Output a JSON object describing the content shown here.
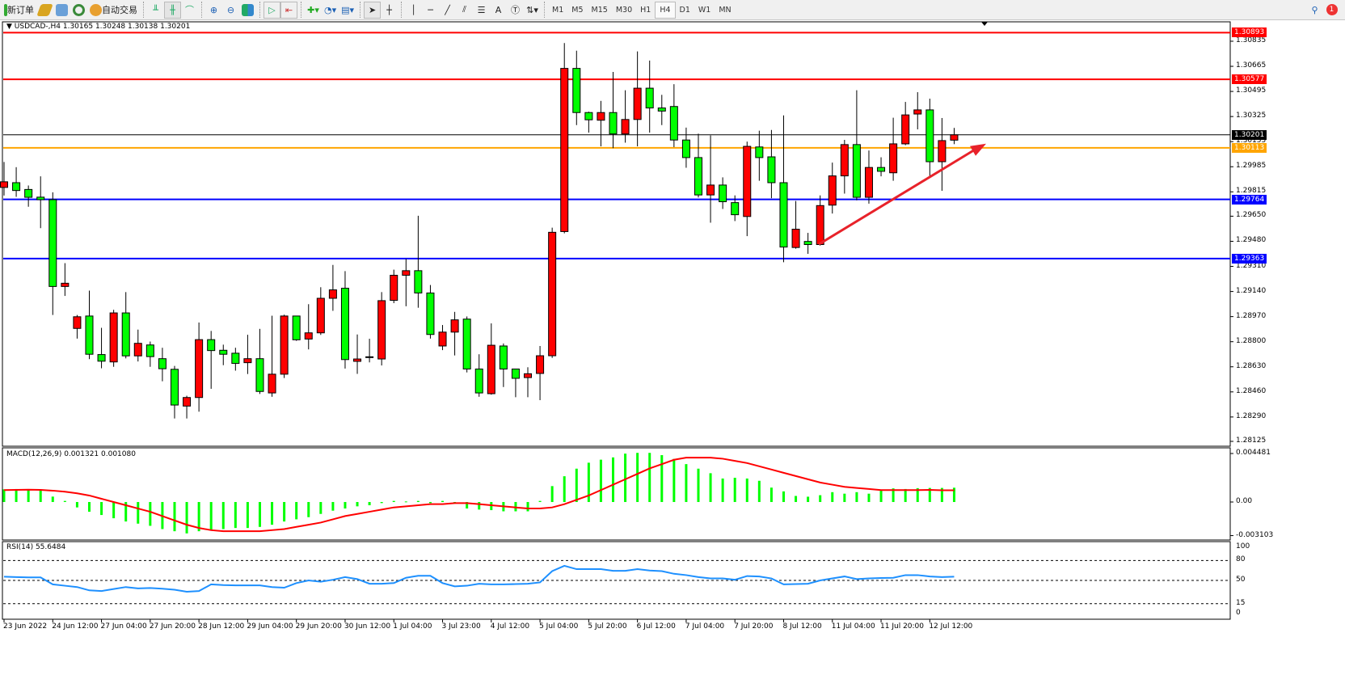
{
  "toolbar": {
    "new_order": "新订单",
    "auto_trading": "自动交易",
    "timeframes": [
      "M1",
      "M5",
      "M15",
      "M30",
      "H1",
      "H4",
      "D1",
      "W1",
      "MN"
    ],
    "active_timeframe": "H4",
    "notification_count": "1",
    "icons": [
      "new-order-icon",
      "gold-icon",
      "market-watch-icon",
      "signals-icon",
      "auto-trading-icon",
      "bar-chart-icon",
      "candle-chart-icon",
      "line-chart-icon",
      "zoom-in-icon",
      "zoom-out-icon",
      "tile-windows-icon",
      "auto-scroll-icon",
      "chart-shift-icon",
      "add-indicator-icon",
      "periods-icon",
      "templates-icon",
      "cursor-icon",
      "crosshair-icon",
      "vertical-line-icon",
      "horizontal-line-icon",
      "trendline-icon",
      "fibonacci-icon",
      "fibo-levels-icon",
      "text-icon",
      "text-label-icon",
      "arrows-icon",
      "search-icon",
      "notification-icon"
    ]
  },
  "chart": {
    "header": "USDCAD-,H4  1.30165 1.30248 1.30138 1.30201",
    "colors": {
      "bull": "#ff0000",
      "bear": "#00ff00",
      "bid": "#000000",
      "resistance": "#ff0000",
      "support": "#0000ff",
      "orange": "#ffa500",
      "trend_arrow": "#e8222a",
      "macd_hist": "#00ff00",
      "signal": "#ff0000",
      "rsi": "#1e90ff"
    }
  },
  "chart_data": [
    {
      "type": "candlestick",
      "symbol": "USDCAD-",
      "timeframe": "H4",
      "y_ticks": [
        "1.30835",
        "1.30665",
        "1.30495",
        "1.30325",
        "1.30155",
        "1.29985",
        "1.29815",
        "1.29650",
        "1.29480",
        "1.29310",
        "1.29140",
        "1.28970",
        "1.28800",
        "1.28630",
        "1.28460",
        "1.28290",
        "1.28125"
      ],
      "ylim": [
        1.28125,
        1.3096
      ],
      "x_labels": [
        "23 Jun 2022",
        "24 Jun 12:00",
        "27 Jun 04:00",
        "27 Jun 20:00",
        "28 Jun 12:00",
        "29 Jun 04:00",
        "29 Jun 20:00",
        "30 Jun 12:00",
        "1 Jul 04:00",
        "3 Jul 23:00",
        "4 Jul 12:00",
        "5 Jul 04:00",
        "5 Jul 20:00",
        "6 Jul 12:00",
        "7 Jul 04:00",
        "7 Jul 20:00",
        "8 Jul 12:00",
        "11 Jul 04:00",
        "11 Jul 20:00",
        "12 Jul 12:00"
      ],
      "hlines": [
        {
          "price": "1.30893",
          "color": "#ff0000"
        },
        {
          "price": "1.30577",
          "color": "#ff0000"
        },
        {
          "price": "1.30201",
          "color": "#000000"
        },
        {
          "price": "1.30113",
          "color": "#ffa500"
        },
        {
          "price": "1.29764",
          "color": "#0000ff"
        },
        {
          "price": "1.29363",
          "color": "#0000ff"
        }
      ],
      "trend_arrow": {
        "from": [
          65,
          1.2946
        ],
        "to": [
          79,
          1.3013
        ]
      },
      "ohlc": [
        [
          1.29845,
          1.30017,
          1.2979,
          1.29883
        ],
        [
          1.29877,
          1.29982,
          1.29781,
          1.29824
        ],
        [
          1.29831,
          1.29858,
          1.29714,
          1.29778
        ],
        [
          1.29779,
          1.2992,
          1.29569,
          1.29762
        ],
        [
          1.29762,
          1.29812,
          1.28981,
          1.29174
        ],
        [
          1.29174,
          1.29332,
          1.2911,
          1.29196
        ],
        [
          1.2889,
          1.28981,
          1.28821,
          1.28969
        ],
        [
          1.28974,
          1.29146,
          1.28682,
          1.28715
        ],
        [
          1.28713,
          1.28894,
          1.2862,
          1.28668
        ],
        [
          1.28663,
          1.29016,
          1.2863,
          1.28995
        ],
        [
          1.28995,
          1.29136,
          1.28687,
          1.28704
        ],
        [
          1.28704,
          1.28882,
          1.28666,
          1.28789
        ],
        [
          1.28778,
          1.28801,
          1.2863,
          1.28699
        ],
        [
          1.28685,
          1.28759,
          1.28532,
          1.28617
        ],
        [
          1.28613,
          1.28636,
          1.2828,
          1.28371
        ],
        [
          1.28364,
          1.28434,
          1.2828,
          1.28422
        ],
        [
          1.28422,
          1.2893,
          1.28326,
          1.28814
        ],
        [
          1.28814,
          1.28873,
          1.28481,
          1.2874
        ],
        [
          1.28742,
          1.2878,
          1.28641,
          1.28715
        ],
        [
          1.28722,
          1.28759,
          1.28604,
          1.28653
        ],
        [
          1.28658,
          1.28847,
          1.28581,
          1.28685
        ],
        [
          1.28685,
          1.28887,
          1.28446,
          1.28463
        ],
        [
          1.28453,
          1.28976,
          1.28427,
          1.2858
        ],
        [
          1.2858,
          1.28983,
          1.28554,
          1.28974
        ],
        [
          1.28974,
          1.28974,
          1.28806,
          1.28813
        ],
        [
          1.28818,
          1.29054,
          1.28748,
          1.2886
        ],
        [
          1.2886,
          1.29169,
          1.28846,
          1.29094
        ],
        [
          1.29094,
          1.2932,
          1.29009,
          1.29151
        ],
        [
          1.29162,
          1.29278,
          1.28618,
          1.28679
        ],
        [
          1.28667,
          1.28849,
          1.28582,
          1.28683
        ],
        [
          1.28698,
          1.2882,
          1.2866,
          1.28698
        ],
        [
          1.28683,
          1.29136,
          1.28639,
          1.29078
        ],
        [
          1.2908,
          1.29288,
          1.29061,
          1.2925
        ],
        [
          1.2925,
          1.29361,
          1.2904,
          1.29281
        ],
        [
          1.29281,
          1.29653,
          1.2903,
          1.2913
        ],
        [
          1.2913,
          1.29184,
          1.28821,
          1.28849
        ],
        [
          1.28771,
          1.28913,
          1.28743,
          1.28865
        ],
        [
          1.28865,
          1.29002,
          1.28707,
          1.28948
        ],
        [
          1.28953,
          1.28971,
          1.28592,
          1.28615
        ],
        [
          1.28615,
          1.28715,
          1.28427,
          1.28453
        ],
        [
          1.28448,
          1.28924,
          1.28441,
          1.28776
        ],
        [
          1.28771,
          1.28788,
          1.28493,
          1.28615
        ],
        [
          1.28615,
          1.28615,
          1.28424,
          1.28552
        ],
        [
          1.28557,
          1.28627,
          1.28424,
          1.28583
        ],
        [
          1.28585,
          1.28771,
          1.28404,
          1.28705
        ],
        [
          1.28705,
          1.29572,
          1.2869,
          1.29541
        ],
        [
          1.29546,
          1.30823,
          1.29534,
          1.30651
        ],
        [
          1.30651,
          1.30771,
          1.30267,
          1.30352
        ],
        [
          1.30352,
          1.30358,
          1.30216,
          1.30303
        ],
        [
          1.303,
          1.30431,
          1.30123,
          1.30352
        ],
        [
          1.30352,
          1.30627,
          1.30111,
          1.30207
        ],
        [
          1.30207,
          1.30503,
          1.30148,
          1.30305
        ],
        [
          1.30305,
          1.30766,
          1.30123,
          1.30517
        ],
        [
          1.30517,
          1.30704,
          1.30216,
          1.30383
        ],
        [
          1.30383,
          1.30472,
          1.30267,
          1.30362
        ],
        [
          1.30393,
          1.30544,
          1.30118,
          1.30166
        ],
        [
          1.30166,
          1.3025,
          1.29978,
          1.30047
        ],
        [
          1.30047,
          1.30209,
          1.29777,
          1.29794
        ],
        [
          1.29794,
          1.30197,
          1.29606,
          1.29861
        ],
        [
          1.29861,
          1.29913,
          1.29699,
          1.29748
        ],
        [
          1.29742,
          1.29791,
          1.29617,
          1.2966
        ],
        [
          1.29648,
          1.30155,
          1.29515,
          1.30123
        ],
        [
          1.30119,
          1.30229,
          1.2989,
          1.30047
        ],
        [
          1.30052,
          1.30234,
          1.29772,
          1.29877
        ],
        [
          1.29877,
          1.30333,
          1.29338,
          1.29441
        ],
        [
          1.29438,
          1.29753,
          1.2943,
          1.29562
        ],
        [
          1.29479,
          1.29537,
          1.29395,
          1.29458
        ],
        [
          1.29458,
          1.29791,
          1.29451,
          1.29722
        ],
        [
          1.29725,
          1.30013,
          1.29668,
          1.29923
        ],
        [
          1.29923,
          1.30167,
          1.29803,
          1.30135
        ],
        [
          1.30135,
          1.30503,
          1.29758,
          1.29778
        ],
        [
          1.29778,
          1.30095,
          1.29735,
          1.2998
        ],
        [
          1.2998,
          1.30049,
          1.2992,
          1.29954
        ],
        [
          1.29944,
          1.30317,
          1.2989,
          1.3014
        ],
        [
          1.3014,
          1.30424,
          1.30131,
          1.30336
        ],
        [
          1.30342,
          1.3049,
          1.30238,
          1.3037
        ],
        [
          1.3037,
          1.30446,
          1.29921,
          1.30019
        ],
        [
          1.30019,
          1.30315,
          1.29822,
          1.30162
        ],
        [
          1.30165,
          1.30248,
          1.30138,
          1.30201
        ]
      ]
    },
    {
      "type": "bar+line",
      "title": "MACD(12,26,9) 0.001321 0.001080",
      "y_ticks": [
        "0.004481",
        "0.00",
        "-0.003103"
      ],
      "ylim": [
        -0.003103,
        0.004481
      ],
      "histogram": [
        0.00117,
        0.0012,
        0.00117,
        0.0011,
        0.0005,
        0.0001,
        -0.0005,
        -0.0009,
        -0.0012,
        -0.0015,
        -0.0018,
        -0.002,
        -0.0022,
        -0.0025,
        -0.0027,
        -0.0029,
        -0.0027,
        -0.0026,
        -0.0025,
        -0.0024,
        -0.0024,
        -0.0023,
        -0.0021,
        -0.0018,
        -0.0016,
        -0.0014,
        -0.0011,
        -0.0008,
        -0.0006,
        -0.0004,
        -0.0003,
        -0.0001,
        0.0001,
        5e-05,
        0.0001,
        -0.0001,
        0.0001,
        -0.0001,
        -0.0006,
        -0.0007,
        -0.00075,
        -0.00086,
        -0.00086,
        -0.00086,
        0.0001,
        0.00147,
        0.00238,
        0.00308,
        0.00363,
        0.00391,
        0.00412,
        0.00447,
        0.00454,
        0.00454,
        0.00433,
        0.00398,
        0.0035,
        0.00308,
        0.00266,
        0.00217,
        0.00224,
        0.00217,
        0.00196,
        0.00133,
        0.00098,
        0.00056,
        0.00049,
        0.00063,
        0.00091,
        0.00077,
        0.00091,
        0.00077,
        0.00105,
        0.00126,
        0.0012,
        0.00128,
        0.0013,
        0.0013,
        0.001321
      ],
      "signal": [
        0.0011,
        0.00112,
        0.00114,
        0.00112,
        0.00105,
        0.00095,
        0.0008,
        0.0006,
        0.0003,
        0.0,
        -0.0003,
        -0.0006,
        -0.0009,
        -0.0013,
        -0.0017,
        -0.0021,
        -0.0024,
        -0.0026,
        -0.0027,
        -0.0027,
        -0.0027,
        -0.0027,
        -0.0026,
        -0.0025,
        -0.0023,
        -0.0021,
        -0.0019,
        -0.0016,
        -0.0013,
        -0.0011,
        -0.0009,
        -0.0007,
        -0.0005,
        -0.0004,
        -0.0003,
        -0.0002,
        -0.0002,
        -0.0001,
        -0.0001,
        -0.0002,
        -0.0003,
        -0.0004,
        -0.0005,
        -0.0006,
        -0.0006,
        -0.0005,
        -0.0002,
        0.0002,
        0.0006,
        0.0011,
        0.0016,
        0.0021,
        0.0026,
        0.0031,
        0.0035,
        0.0039,
        0.0041,
        0.0041,
        0.0041,
        0.004,
        0.0038,
        0.0036,
        0.0033,
        0.003,
        0.0027,
        0.0024,
        0.0021,
        0.0018,
        0.0016,
        0.0014,
        0.0013,
        0.0012,
        0.0011,
        0.0011,
        0.0011,
        0.0011,
        0.00112,
        0.00108,
        0.00108
      ]
    },
    {
      "type": "line",
      "title": "RSI(14) 55.6484",
      "y_ticks": [
        "100",
        "80",
        "50",
        "15",
        "0"
      ],
      "ylim": [
        0,
        100
      ],
      "levels": [
        80,
        50,
        15
      ],
      "values": [
        55.6,
        55,
        54.5,
        54.5,
        44,
        42,
        40,
        35,
        34,
        37,
        40,
        38,
        38.5,
        37.5,
        36,
        33,
        34,
        44,
        43,
        42.5,
        42.5,
        42.5,
        40,
        39,
        46,
        50,
        48,
        51,
        55,
        52,
        45,
        45,
        46,
        54,
        57,
        57,
        46,
        41,
        42,
        45,
        44,
        44,
        44.5,
        45,
        47,
        64,
        72,
        67,
        67,
        67,
        64.5,
        64.5,
        67,
        65,
        64,
        60,
        58,
        55,
        53,
        53,
        51,
        56.6,
        56,
        53,
        44,
        44.5,
        45,
        50,
        53,
        56,
        52,
        53,
        53.6,
        54,
        58,
        58,
        56,
        55,
        55.6484
      ]
    }
  ]
}
